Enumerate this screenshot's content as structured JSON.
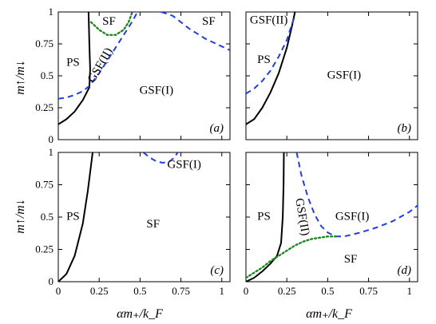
{
  "x_axis_label": "αm₊/k_F",
  "y_axis_label": "m↑/m↓",
  "chart_data": [
    {
      "type": "line",
      "panel_label": "(a)",
      "xlim": [
        0,
        1.05
      ],
      "ylim": [
        0,
        1
      ],
      "x_ticks": [],
      "y_ticks": [
        "0",
        "0.25",
        "0.5",
        "0.75",
        "1"
      ],
      "regions": [
        {
          "text": "PS",
          "x": 0.09,
          "y": 0.6
        },
        {
          "text": "SF",
          "x": 0.31,
          "y": 0.92
        },
        {
          "text": "SF",
          "x": 0.92,
          "y": 0.92
        },
        {
          "text": "GSF(I)",
          "x": 0.6,
          "y": 0.38
        },
        {
          "text": "GSF(II)",
          "x": 0.26,
          "y": 0.58,
          "rotate": -60
        }
      ],
      "series": [
        {
          "style": "solid-black",
          "points": [
            [
              0,
              0.12
            ],
            [
              0.05,
              0.16
            ],
            [
              0.1,
              0.22
            ],
            [
              0.15,
              0.31
            ],
            [
              0.19,
              0.41
            ],
            [
              0.195,
              0.55
            ],
            [
              0.19,
              0.75
            ],
            [
              0.185,
              1.0
            ]
          ]
        },
        {
          "style": "dashed-blue",
          "points": [
            [
              0,
              0.32
            ],
            [
              0.05,
              0.33
            ],
            [
              0.1,
              0.35
            ],
            [
              0.15,
              0.38
            ],
            [
              0.19,
              0.42
            ],
            [
              0.25,
              0.52
            ],
            [
              0.3,
              0.62
            ],
            [
              0.35,
              0.72
            ],
            [
              0.4,
              0.82
            ],
            [
              0.45,
              0.92
            ],
            [
              0.48,
              0.99
            ]
          ]
        },
        {
          "style": "dashed-blue",
          "points": [
            [
              0.63,
              1.0
            ],
            [
              0.7,
              0.97
            ],
            [
              0.75,
              0.92
            ],
            [
              0.8,
              0.87
            ],
            [
              0.85,
              0.83
            ],
            [
              0.9,
              0.79
            ],
            [
              0.95,
              0.76
            ],
            [
              1.0,
              0.73
            ],
            [
              1.05,
              0.7
            ]
          ]
        },
        {
          "style": "dotted-green",
          "points": [
            [
              0.2,
              0.92
            ],
            [
              0.25,
              0.86
            ],
            [
              0.3,
              0.82
            ],
            [
              0.35,
              0.82
            ],
            [
              0.4,
              0.86
            ],
            [
              0.43,
              0.92
            ],
            [
              0.45,
              0.99
            ]
          ]
        }
      ]
    },
    {
      "type": "line",
      "panel_label": "(b)",
      "xlim": [
        0,
        1.05
      ],
      "ylim": [
        0,
        1
      ],
      "x_ticks": [],
      "y_ticks": [],
      "regions": [
        {
          "text": "GSF(II)",
          "x": 0.14,
          "y": 0.93
        },
        {
          "text": "PS",
          "x": 0.11,
          "y": 0.62
        },
        {
          "text": "GSF(I)",
          "x": 0.6,
          "y": 0.5
        }
      ],
      "series": [
        {
          "style": "solid-black",
          "points": [
            [
              0,
              0.12
            ],
            [
              0.05,
              0.16
            ],
            [
              0.1,
              0.25
            ],
            [
              0.15,
              0.37
            ],
            [
              0.2,
              0.52
            ],
            [
              0.25,
              0.72
            ],
            [
              0.28,
              0.88
            ],
            [
              0.3,
              1.0
            ]
          ]
        },
        {
          "style": "dashed-blue",
          "points": [
            [
              0,
              0.36
            ],
            [
              0.05,
              0.4
            ],
            [
              0.1,
              0.46
            ],
            [
              0.15,
              0.54
            ],
            [
              0.2,
              0.65
            ],
            [
              0.25,
              0.78
            ],
            [
              0.28,
              0.9
            ],
            [
              0.3,
              0.97
            ]
          ]
        }
      ]
    },
    {
      "type": "line",
      "panel_label": "(c)",
      "xlim": [
        0,
        1.05
      ],
      "ylim": [
        0,
        1
      ],
      "x_ticks": [
        "0",
        "0.25",
        "0.5",
        "0.75",
        "1"
      ],
      "y_ticks": [
        "0",
        "0.25",
        "0.5",
        "0.75",
        "1"
      ],
      "regions": [
        {
          "text": "PS",
          "x": 0.09,
          "y": 0.5
        },
        {
          "text": "SF",
          "x": 0.58,
          "y": 0.44
        },
        {
          "text": "GSF(I)",
          "x": 0.77,
          "y": 0.9
        }
      ],
      "series": [
        {
          "style": "solid-black",
          "points": [
            [
              0,
              0
            ],
            [
              0.05,
              0.06
            ],
            [
              0.1,
              0.2
            ],
            [
              0.15,
              0.45
            ],
            [
              0.18,
              0.7
            ],
            [
              0.2,
              0.9
            ],
            [
              0.21,
              1.0
            ]
          ]
        },
        {
          "style": "dashed-blue",
          "points": [
            [
              0.52,
              1.0
            ],
            [
              0.56,
              0.96
            ],
            [
              0.6,
              0.93
            ],
            [
              0.64,
              0.92
            ],
            [
              0.68,
              0.93
            ],
            [
              0.71,
              0.96
            ],
            [
              0.73,
              1.0
            ]
          ]
        }
      ]
    },
    {
      "type": "line",
      "panel_label": "(d)",
      "xlim": [
        0,
        1.05
      ],
      "ylim": [
        0,
        1
      ],
      "x_ticks": [
        "0",
        "0.25",
        "0.5",
        "0.75",
        "1"
      ],
      "y_ticks": [],
      "regions": [
        {
          "text": "PS",
          "x": 0.11,
          "y": 0.5
        },
        {
          "text": "GSF(I)",
          "x": 0.65,
          "y": 0.5
        },
        {
          "text": "SF",
          "x": 0.64,
          "y": 0.17
        },
        {
          "text": "GSF(II)",
          "x": 0.34,
          "y": 0.5,
          "rotate": 80
        }
      ],
      "series": [
        {
          "style": "solid-black",
          "points": [
            [
              0,
              0
            ],
            [
              0.05,
              0.03
            ],
            [
              0.1,
              0.08
            ],
            [
              0.15,
              0.14
            ],
            [
              0.19,
              0.2
            ],
            [
              0.215,
              0.3
            ],
            [
              0.225,
              0.5
            ],
            [
              0.23,
              0.75
            ],
            [
              0.232,
              1.0
            ]
          ]
        },
        {
          "style": "dashed-blue",
          "points": [
            [
              0.31,
              1.0
            ],
            [
              0.34,
              0.82
            ],
            [
              0.38,
              0.65
            ],
            [
              0.42,
              0.52
            ],
            [
              0.46,
              0.43
            ],
            [
              0.5,
              0.38
            ],
            [
              0.55,
              0.35
            ],
            [
              0.6,
              0.35
            ],
            [
              0.7,
              0.38
            ],
            [
              0.8,
              0.42
            ],
            [
              0.9,
              0.47
            ],
            [
              1.0,
              0.54
            ],
            [
              1.05,
              0.59
            ]
          ]
        },
        {
          "style": "dotted-green",
          "points": [
            [
              0,
              0.03
            ],
            [
              0.05,
              0.07
            ],
            [
              0.1,
              0.11
            ],
            [
              0.15,
              0.16
            ],
            [
              0.2,
              0.2
            ],
            [
              0.25,
              0.24
            ],
            [
              0.3,
              0.28
            ],
            [
              0.35,
              0.31
            ],
            [
              0.4,
              0.33
            ],
            [
              0.45,
              0.34
            ],
            [
              0.5,
              0.35
            ],
            [
              0.55,
              0.35
            ]
          ]
        }
      ]
    }
  ]
}
